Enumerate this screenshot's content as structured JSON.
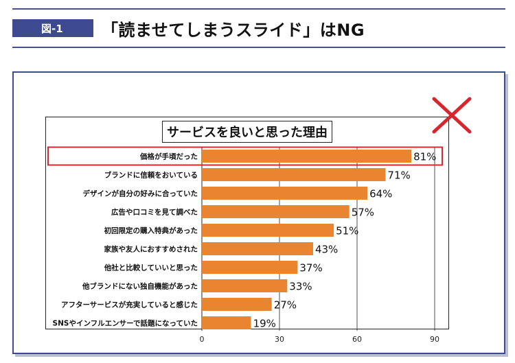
{
  "figure_label": "図-1",
  "headline": "「読ませてしまうスライド」はNG",
  "accent_color": "#3d4a8f",
  "bar_color": "#e98530",
  "highlight_color": "#d6262e",
  "mark_icon": "x-mark-icon",
  "chart_data": {
    "type": "bar",
    "orientation": "horizontal",
    "title": "サービスを良いと思った理由",
    "categories": [
      "価格が手頃だった",
      "ブランドに信頼をおいている",
      "デザインが自分の好みに合っていた",
      "広告や口コミを見て調べた",
      "初回限定の購入特典があった",
      "家族や友人におすすめされた",
      "他社と比較していいと思った",
      "他ブランドにない独自機能があった",
      "アフターサービスが充実していると感じた",
      "SNSやインフルエンサーで話題になっていた"
    ],
    "values": [
      81,
      71,
      64,
      57,
      51,
      43,
      37,
      33,
      27,
      19
    ],
    "value_labels": [
      "81%",
      "71%",
      "64%",
      "57%",
      "51%",
      "43%",
      "37%",
      "33%",
      "27%",
      "19%"
    ],
    "xlim": [
      0,
      90
    ],
    "xticks": [
      0,
      30,
      60,
      90
    ],
    "grid": true,
    "highlighted_category": "価格が手頃だった"
  }
}
